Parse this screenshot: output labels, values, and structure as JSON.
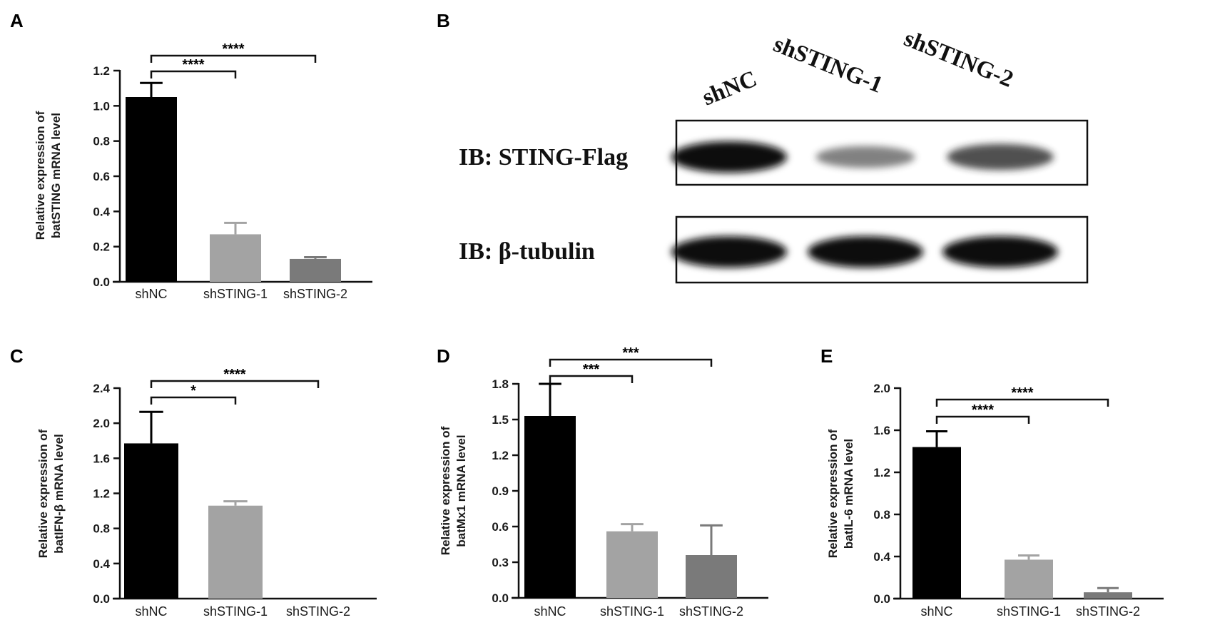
{
  "panels": {
    "a": "A",
    "b": "B",
    "c": "C",
    "d": "D",
    "e": "E"
  },
  "blot": {
    "lanes": [
      "shNC",
      "shSTING-1",
      "shSTING-2"
    ],
    "rows": [
      {
        "label": "IB: STING-Flag",
        "intensities": [
          1.0,
          0.45,
          0.7
        ]
      },
      {
        "label": "IB: β-tubulin",
        "intensities": [
          1.0,
          1.0,
          1.0
        ]
      }
    ]
  },
  "chart_data": [
    {
      "id": "A",
      "type": "bar",
      "categories": [
        "shNC",
        "shSTING-1",
        "shSTING-2"
      ],
      "values": [
        1.05,
        0.27,
        0.13
      ],
      "errors": [
        0.08,
        0.065,
        0.01
      ],
      "colors": [
        "#000000",
        "#a3a3a3",
        "#7a7a7a"
      ],
      "ylabel_lines": [
        "Relative expression of",
        "batSTING mRNA level"
      ],
      "ylim": [
        0,
        1.2
      ],
      "yticks": [
        "0.0",
        "0.2",
        "0.4",
        "0.6",
        "0.8",
        "1.0",
        "1.2"
      ],
      "significance": [
        {
          "from": 0,
          "to": 1,
          "label": "****"
        },
        {
          "from": 0,
          "to": 2,
          "label": "****"
        }
      ]
    },
    {
      "id": "C",
      "type": "bar",
      "categories": [
        "shNC",
        "shSTING-1",
        "shSTING-2"
      ],
      "values": [
        1.77,
        1.06,
        0.0
      ],
      "errors": [
        0.36,
        0.05,
        0.0
      ],
      "colors": [
        "#000000",
        "#a3a3a3",
        "#7a7a7a"
      ],
      "ylabel_lines": [
        "Relative expression of",
        "batIFN-β mRNA level"
      ],
      "ylim": [
        0,
        2.4
      ],
      "yticks": [
        "0.0",
        "0.4",
        "0.8",
        "1.2",
        "1.6",
        "2.0",
        "2.4"
      ],
      "significance": [
        {
          "from": 0,
          "to": 1,
          "label": "*"
        },
        {
          "from": 0,
          "to": 2,
          "label": "****"
        }
      ]
    },
    {
      "id": "D",
      "type": "bar",
      "categories": [
        "shNC",
        "shSTING-1",
        "shSTING-2"
      ],
      "values": [
        1.53,
        0.56,
        0.36
      ],
      "errors": [
        0.27,
        0.06,
        0.25
      ],
      "colors": [
        "#000000",
        "#a3a3a3",
        "#7a7a7a"
      ],
      "ylabel_lines": [
        "Relative expression of",
        "batMx1 mRNA level"
      ],
      "ylim": [
        0,
        1.8
      ],
      "yticks": [
        "0.0",
        "0.3",
        "0.6",
        "0.9",
        "1.2",
        "1.5",
        "1.8"
      ],
      "significance": [
        {
          "from": 0,
          "to": 1,
          "label": "***"
        },
        {
          "from": 0,
          "to": 2,
          "label": "***"
        }
      ]
    },
    {
      "id": "E",
      "type": "bar",
      "categories": [
        "shNC",
        "shSTING-1",
        "shSTING-2"
      ],
      "values": [
        1.44,
        0.37,
        0.06
      ],
      "errors": [
        0.15,
        0.04,
        0.04
      ],
      "colors": [
        "#000000",
        "#a3a3a3",
        "#7a7a7a"
      ],
      "ylabel_lines": [
        "Relative expression of",
        "batIL-6 mRNA level"
      ],
      "ylim": [
        0,
        2.0
      ],
      "yticks": [
        "0.0",
        "0.4",
        "0.8",
        "1.2",
        "1.6",
        "2.0"
      ],
      "significance": [
        {
          "from": 0,
          "to": 1,
          "label": "****"
        },
        {
          "from": 0,
          "to": 2,
          "label": "****"
        }
      ]
    }
  ]
}
